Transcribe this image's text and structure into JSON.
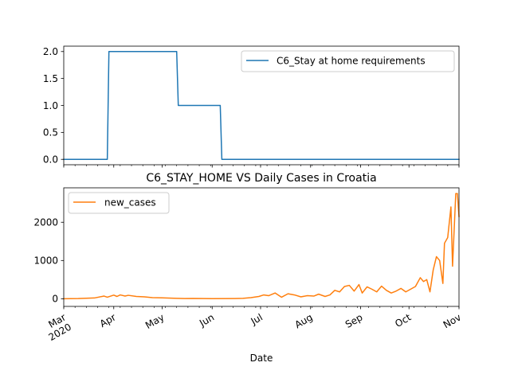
{
  "chart_data": [
    {
      "type": "line",
      "title": "",
      "xlabel": "",
      "ylabel": "",
      "ylim": [
        -0.1,
        2.1
      ],
      "yticks": [
        0.0,
        0.5,
        1.0,
        1.5,
        2.0
      ],
      "ytick_labels": [
        "0.0",
        "0.5",
        "1.0",
        "1.5",
        "2.0"
      ],
      "x_range": [
        "2020-03-01",
        "2020-11-01"
      ],
      "grid": false,
      "legend": "upper right",
      "color": "#1f77b4",
      "series": [
        {
          "name": "C6_Stay at home requirements",
          "x": [
            "2020-03-01",
            "2020-03-28",
            "2020-03-29",
            "2020-05-10",
            "2020-05-11",
            "2020-06-06",
            "2020-06-07",
            "2020-11-01"
          ],
          "y": [
            0,
            0,
            2,
            2,
            1,
            1,
            0,
            0
          ]
        }
      ]
    },
    {
      "type": "line",
      "title": "C6_STAY_HOME VS Daily Cases in Croatia",
      "xlabel": "Date",
      "ylabel": "",
      "ylim": [
        -200,
        2900
      ],
      "yticks": [
        0,
        1000,
        2000
      ],
      "ytick_labels": [
        "0",
        "1000",
        "2000"
      ],
      "x_range": [
        "2020-03-01",
        "2020-11-01"
      ],
      "xticks": [
        "2020-03-01",
        "2020-04-01",
        "2020-05-01",
        "2020-06-01",
        "2020-07-01",
        "2020-08-01",
        "2020-09-01",
        "2020-10-01",
        "2020-11-01"
      ],
      "xtick_labels": [
        "Mar\n2020",
        "Apr",
        "May",
        "Jun",
        "Jul",
        "Aug",
        "Sep",
        "Oct",
        "Nov"
      ],
      "grid": false,
      "legend": "upper left",
      "color": "#ff7f0e",
      "series": [
        {
          "name": "new_cases",
          "x": [
            "2020-03-01",
            "2020-03-10",
            "2020-03-20",
            "2020-03-26",
            "2020-03-28",
            "2020-04-01",
            "2020-04-03",
            "2020-04-05",
            "2020-04-08",
            "2020-04-10",
            "2020-04-15",
            "2020-04-20",
            "2020-04-25",
            "2020-05-01",
            "2020-05-10",
            "2020-05-15",
            "2020-05-20",
            "2020-06-01",
            "2020-06-15",
            "2020-06-20",
            "2020-06-25",
            "2020-06-30",
            "2020-07-03",
            "2020-07-06",
            "2020-07-10",
            "2020-07-14",
            "2020-07-18",
            "2020-07-22",
            "2020-07-26",
            "2020-07-30",
            "2020-08-03",
            "2020-08-06",
            "2020-08-10",
            "2020-08-13",
            "2020-08-16",
            "2020-08-19",
            "2020-08-22",
            "2020-08-25",
            "2020-08-28",
            "2020-08-31",
            "2020-09-02",
            "2020-09-05",
            "2020-09-08",
            "2020-09-11",
            "2020-09-14",
            "2020-09-17",
            "2020-09-20",
            "2020-09-23",
            "2020-09-26",
            "2020-09-29",
            "2020-10-02",
            "2020-10-05",
            "2020-10-08",
            "2020-10-10",
            "2020-10-12",
            "2020-10-14",
            "2020-10-16",
            "2020-10-18",
            "2020-10-20",
            "2020-10-22",
            "2020-10-23",
            "2020-10-25",
            "2020-10-27",
            "2020-10-28",
            "2020-10-30",
            "2020-10-31",
            "2020-11-01"
          ],
          "y": [
            0,
            5,
            20,
            70,
            40,
            95,
            60,
            100,
            70,
            90,
            60,
            50,
            30,
            25,
            10,
            5,
            8,
            3,
            5,
            10,
            30,
            60,
            100,
            80,
            150,
            40,
            130,
            100,
            50,
            80,
            70,
            120,
            60,
            100,
            220,
            180,
            320,
            350,
            200,
            370,
            150,
            310,
            250,
            180,
            330,
            220,
            150,
            200,
            270,
            180,
            250,
            320,
            550,
            450,
            500,
            180,
            750,
            1100,
            1000,
            400,
            1450,
            1600,
            2400,
            850,
            2750,
            2750,
            2150
          ]
        }
      ]
    }
  ]
}
